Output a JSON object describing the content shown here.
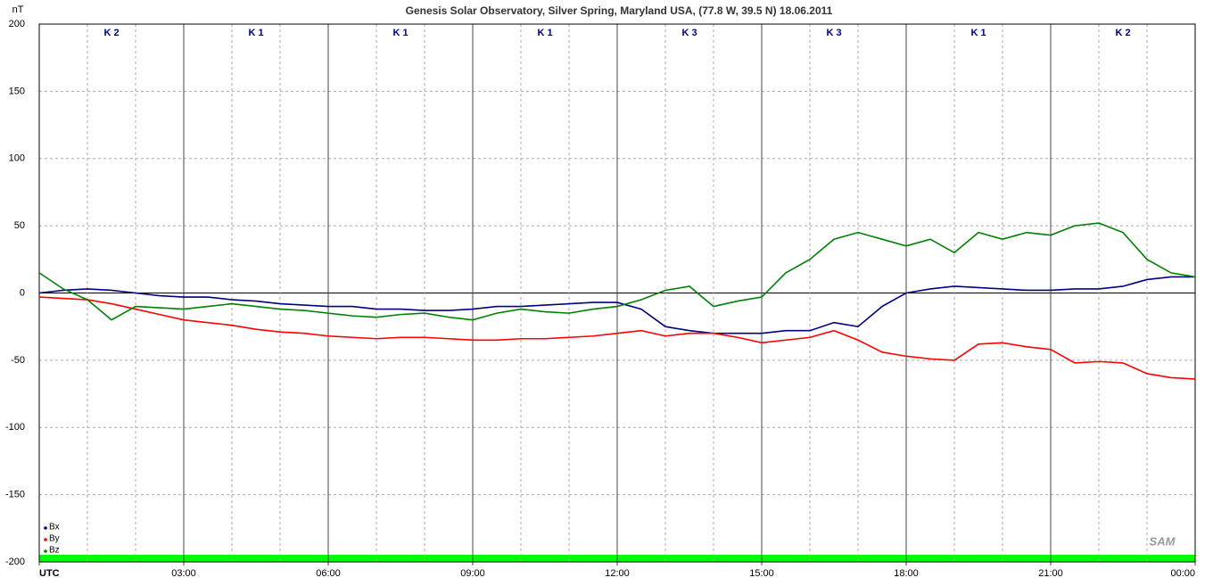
{
  "chart_data": {
    "type": "line",
    "title": "Genesis Solar Observatory, Silver Spring, Maryland USA, (77.8 W, 39.5 N)  18.06.2011",
    "y_label": "nT",
    "logo": "SAM",
    "legend": "lower left",
    "grid": true,
    "xlim": [
      0,
      24
    ],
    "ylim": [
      -200,
      200
    ],
    "yticks": [
      -200,
      -150,
      -100,
      -50,
      0,
      50,
      100,
      150,
      200
    ],
    "xticks": [
      {
        "value": 0,
        "label": "UTC"
      },
      {
        "value": 3,
        "label": "03:00"
      },
      {
        "value": 6,
        "label": "06:00"
      },
      {
        "value": 9,
        "label": "09:00"
      },
      {
        "value": 12,
        "label": "12:00"
      },
      {
        "value": 15,
        "label": "15:00"
      },
      {
        "value": 18,
        "label": "18:00"
      },
      {
        "value": 21,
        "label": "21:00"
      },
      {
        "value": 24,
        "label": "00:00"
      }
    ],
    "xminorticks": [
      1,
      2,
      4,
      5,
      7,
      8,
      10,
      11,
      13,
      14,
      16,
      17,
      19,
      20,
      22,
      23
    ],
    "k_index": [
      "K 2",
      "K 1",
      "K 1",
      "K 1",
      "K 3",
      "K 3",
      "K 1",
      "K 2"
    ],
    "x": [
      0,
      0.5,
      1,
      1.5,
      2,
      2.5,
      3,
      3.5,
      4,
      4.5,
      5,
      5.5,
      6,
      6.5,
      7,
      7.5,
      8,
      8.5,
      9,
      9.5,
      10,
      10.5,
      11,
      11.5,
      12,
      12.5,
      13,
      13.5,
      14,
      14.5,
      15,
      15.5,
      16,
      16.5,
      17,
      17.5,
      18,
      18.5,
      19,
      19.5,
      20,
      20.5,
      21,
      21.5,
      22,
      22.5,
      23,
      23.5,
      24
    ],
    "series": [
      {
        "name": "Bx",
        "color": "#000080",
        "values": [
          0,
          2,
          3,
          2,
          0,
          -2,
          -3,
          -3,
          -5,
          -6,
          -8,
          -9,
          -10,
          -10,
          -12,
          -12,
          -13,
          -13,
          -12,
          -10,
          -10,
          -9,
          -8,
          -7,
          -7,
          -12,
          -25,
          -28,
          -30,
          -30,
          -30,
          -28,
          -28,
          -22,
          -25,
          -10,
          0,
          3,
          5,
          4,
          3,
          2,
          2,
          3,
          3,
          5,
          10,
          12,
          12
        ]
      },
      {
        "name": "By",
        "color": "#ff0000",
        "values": [
          -3,
          -4,
          -5,
          -8,
          -12,
          -16,
          -20,
          -22,
          -24,
          -27,
          -29,
          -30,
          -32,
          -33,
          -34,
          -33,
          -33,
          -34,
          -35,
          -35,
          -34,
          -34,
          -33,
          -32,
          -30,
          -28,
          -32,
          -30,
          -30,
          -33,
          -37,
          -35,
          -33,
          -28,
          -35,
          -44,
          -47,
          -49,
          -50,
          -38,
          -37,
          -40,
          -42,
          -52,
          -51,
          -52,
          -60,
          -63,
          -64
        ]
      },
      {
        "name": "Bz",
        "color": "#008000",
        "values": [
          15,
          3,
          -5,
          -20,
          -10,
          -11,
          -12,
          -10,
          -8,
          -10,
          -12,
          -13,
          -15,
          -17,
          -18,
          -16,
          -15,
          -18,
          -20,
          -15,
          -12,
          -14,
          -15,
          -12,
          -10,
          -5,
          2,
          5,
          -10,
          -6,
          -3,
          15,
          25,
          40,
          45,
          40,
          35,
          40,
          30,
          45,
          40,
          45,
          43,
          50,
          52,
          45,
          25,
          15,
          12
        ]
      }
    ]
  }
}
